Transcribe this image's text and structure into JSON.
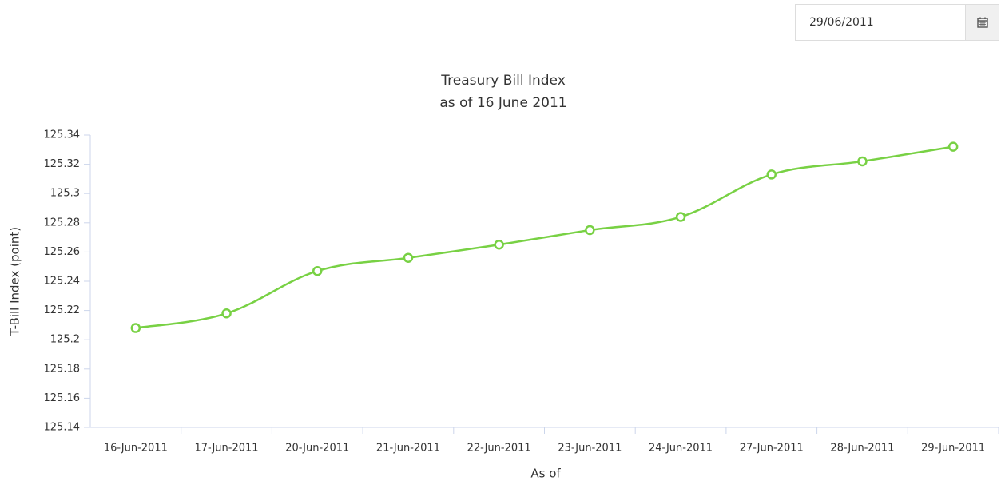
{
  "date_input": "29/06/2011",
  "chart_data": {
    "type": "line",
    "title": "Treasury Bill Index",
    "subtitle": "as of 16 June 2011",
    "x_label": "As of",
    "y_label": "T-Bill Index (point)",
    "categories": [
      "16-Jun-2011",
      "17-Jun-2011",
      "20-Jun-2011",
      "21-Jun-2011",
      "22-Jun-2011",
      "23-Jun-2011",
      "24-Jun-2011",
      "27-Jun-2011",
      "28-Jun-2011",
      "29-Jun-2011"
    ],
    "values": [
      125.208,
      125.218,
      125.247,
      125.256,
      125.265,
      125.275,
      125.284,
      125.313,
      125.322,
      125.332
    ],
    "color": "#78d144",
    "ylim": [
      125.14,
      125.34
    ],
    "yticks": [
      125.14,
      125.16,
      125.18,
      125.2,
      125.22,
      125.24,
      125.26,
      125.28,
      125.3,
      125.32,
      125.34
    ],
    "grid": false
  }
}
